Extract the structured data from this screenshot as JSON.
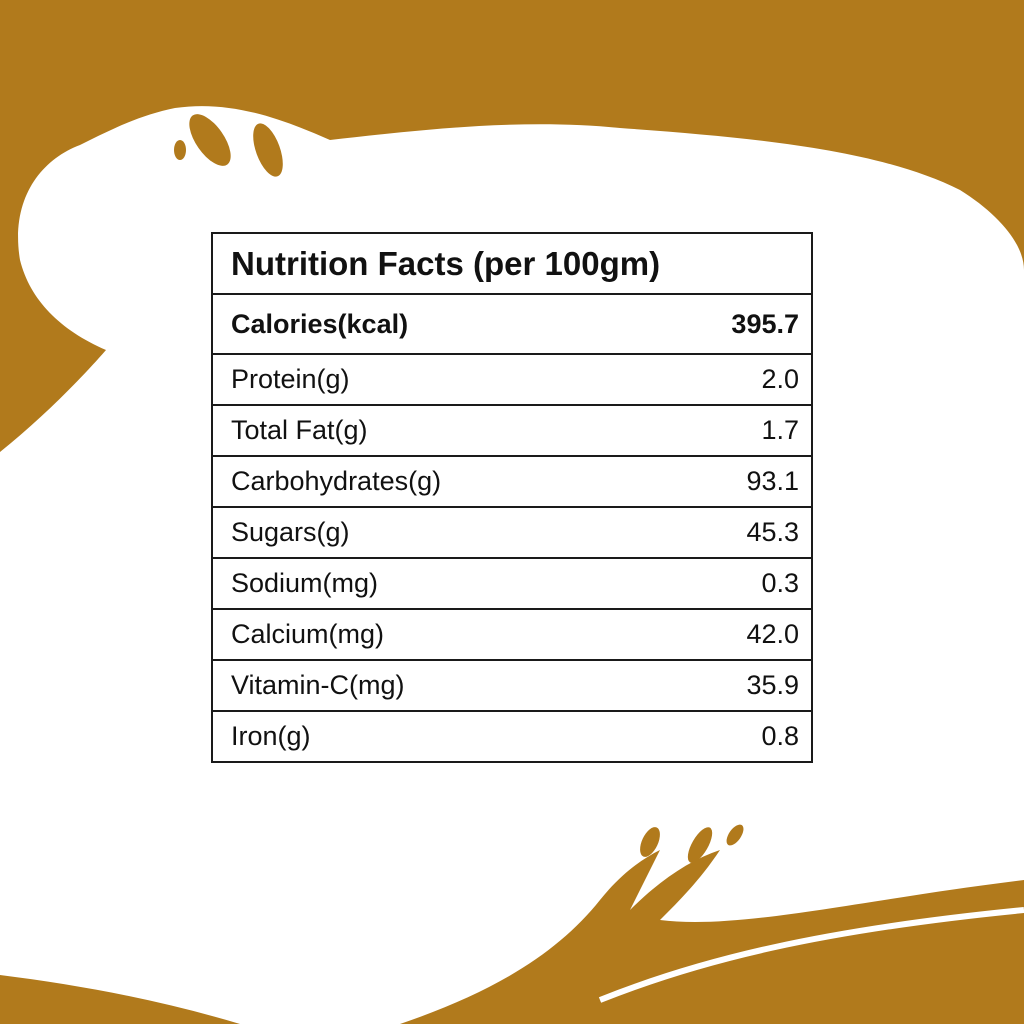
{
  "colors": {
    "background": "#b17a1c",
    "splash": "#ffffff",
    "table_border": "#1a1a1a",
    "text": "#111111"
  },
  "nutrition": {
    "title": "Nutrition Facts (per 100gm)",
    "calories": {
      "label": "Calories(kcal)",
      "value": "395.7"
    },
    "rows": [
      {
        "label": "Protein(g)",
        "value": "2.0"
      },
      {
        "label": "Total Fat(g)",
        "value": "1.7"
      },
      {
        "label": "Carbohydrates(g)",
        "value": "93.1"
      },
      {
        "label": "Sugars(g)",
        "value": "45.3"
      },
      {
        "label": "Sodium(mg)",
        "value": "0.3"
      },
      {
        "label": "Calcium(mg)",
        "value": "42.0"
      },
      {
        "label": "Vitamin-C(mg)",
        "value": "35.9"
      },
      {
        "label": "Iron(g)",
        "value": "0.8"
      }
    ]
  }
}
